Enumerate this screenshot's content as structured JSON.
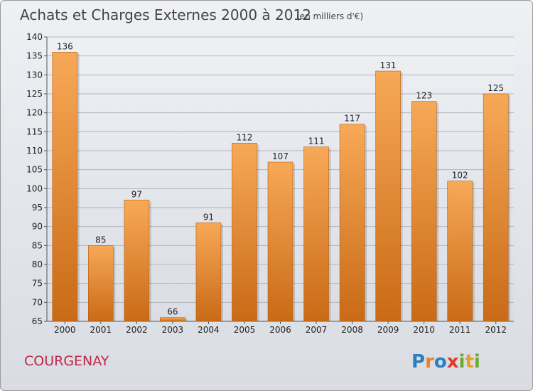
{
  "chart_data": {
    "type": "bar",
    "title": "Achats et Charges Externes 2000 à 2012",
    "subtitle": "(en milliers d'€)",
    "categories": [
      "2000",
      "2001",
      "2002",
      "2003",
      "2004",
      "2005",
      "2006",
      "2007",
      "2008",
      "2009",
      "2010",
      "2011",
      "2012"
    ],
    "values": [
      136,
      85,
      97,
      66,
      91,
      112,
      107,
      111,
      117,
      131,
      123,
      102,
      125
    ],
    "ylim": [
      65,
      140
    ],
    "yticks": [
      65,
      70,
      75,
      80,
      85,
      90,
      95,
      100,
      105,
      110,
      115,
      120,
      125,
      130,
      135,
      140
    ],
    "grid": true,
    "legend": "none",
    "bar_color": "#f0963c"
  },
  "footer": {
    "commune": "COURGENAY",
    "logo": {
      "letters": [
        "P",
        "r",
        "o",
        "x",
        "i",
        "t",
        "i"
      ],
      "colors": [
        "#2a7fc0",
        "#e8822a",
        "#2a7fc0",
        "#e23a2a",
        "#6aa830",
        "#e8a020",
        "#6aa830"
      ]
    }
  }
}
